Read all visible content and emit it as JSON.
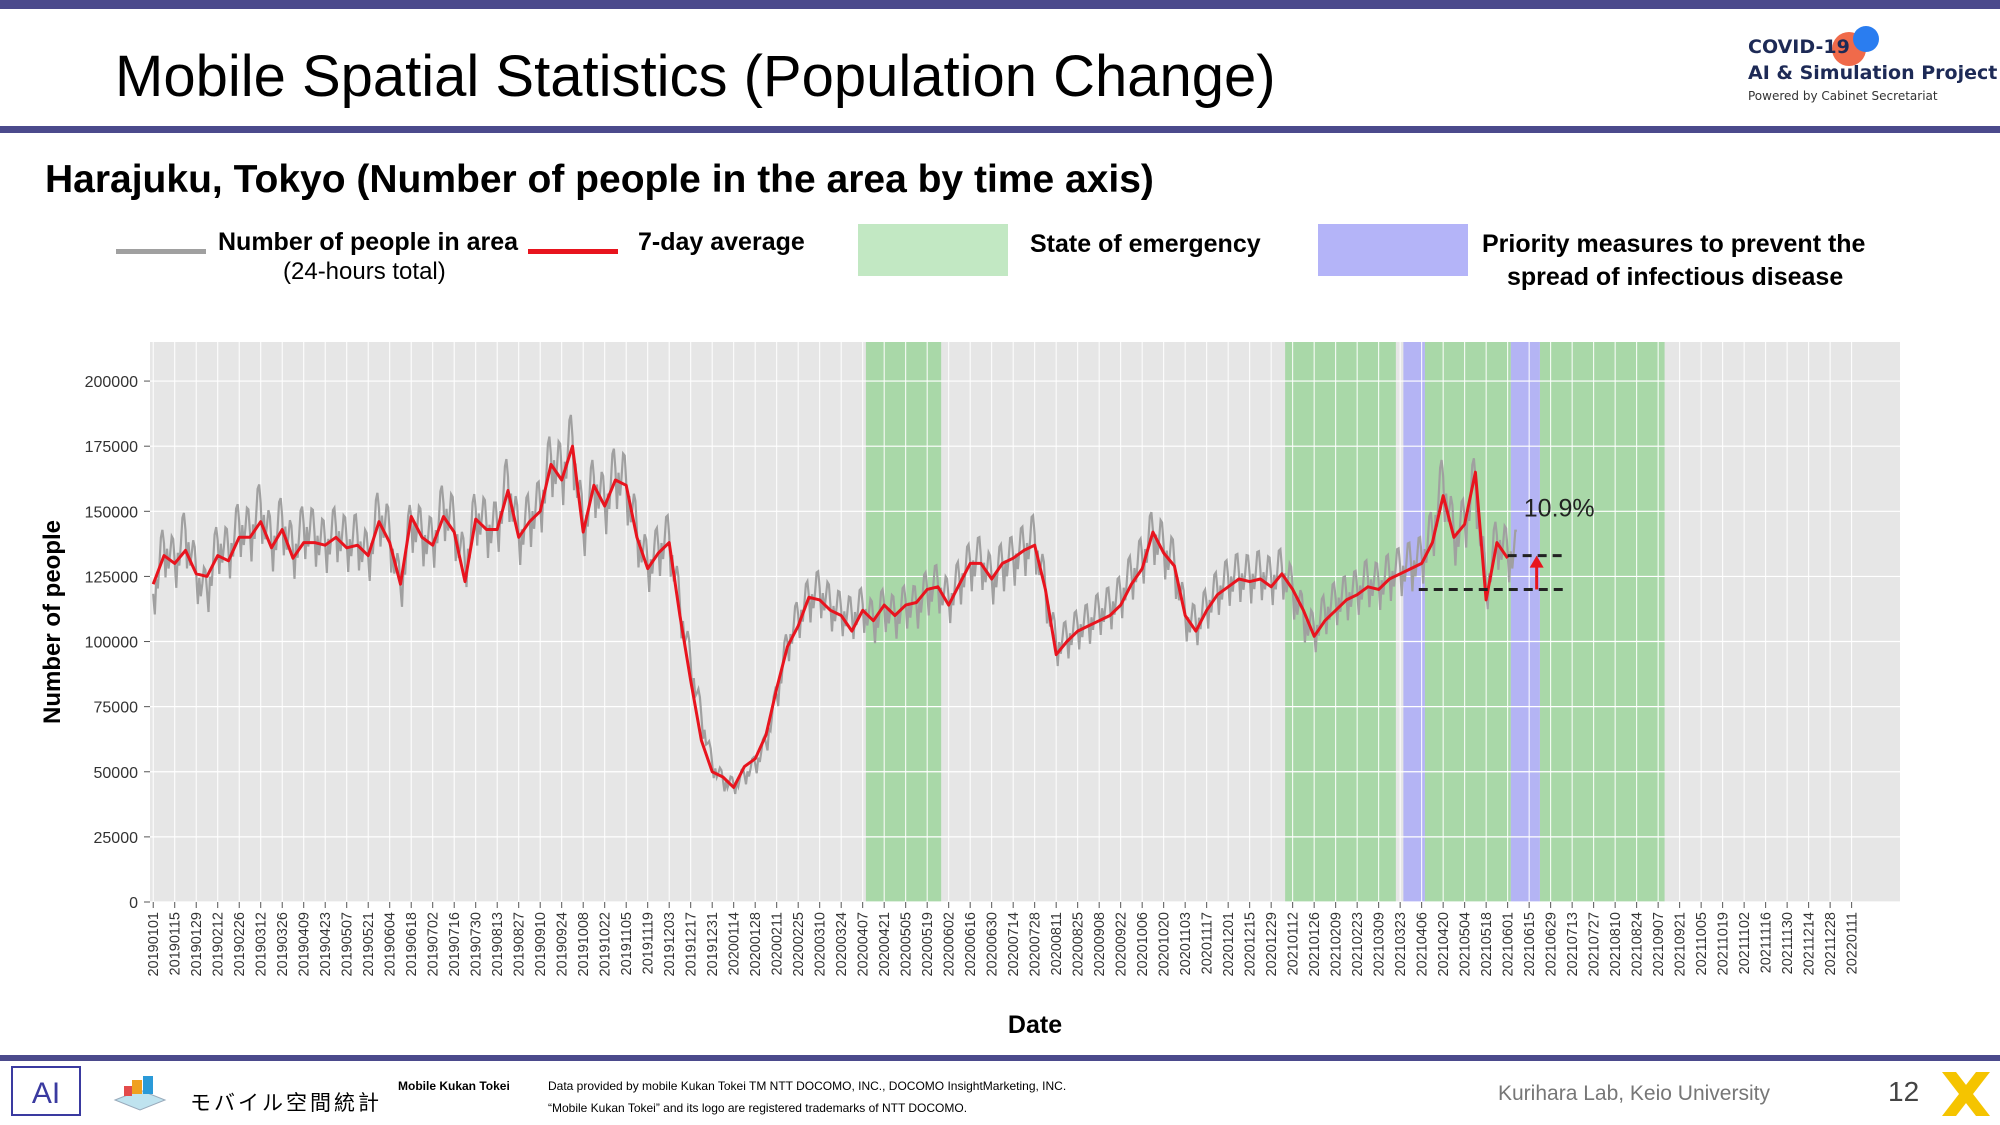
{
  "header": {
    "title": "Mobile Spatial Statistics (Population Change)",
    "brand_line1": "COVID-19",
    "brand_line2": "AI & Simulation Project",
    "brand_line3": "Powered by Cabinet Secretariat"
  },
  "subtitle": "Harajuku, Tokyo (Number of people in the area by time axis)",
  "legend": {
    "area_label": "Number of people in area",
    "area_sub": "(24-hours total)",
    "avg_label": "7-day average",
    "emergency_label": "State of emergency",
    "priority_line1": "Priority measures to prevent the",
    "priority_line2": "spread of infectious disease"
  },
  "colors": {
    "raw": "#a0a0a0",
    "avg": "#e8141e",
    "emergency": "#a9d8a8",
    "priority": "#b4b4f4",
    "plot_bg": "#e6e6e6",
    "header_bar": "#4b4a8c"
  },
  "chart_data": {
    "type": "line",
    "xlabel": "Date",
    "ylabel": "Number of people",
    "ylim": [
      0,
      215000
    ],
    "yticks": [
      0,
      25000,
      50000,
      75000,
      100000,
      125000,
      150000,
      175000,
      200000
    ],
    "ytick_labels": [
      "0",
      "25000",
      "50000",
      "75000",
      "100000",
      "125000",
      "150000",
      "175000",
      "200000"
    ],
    "x_tick_labels": [
      "20190101",
      "20190115",
      "20190129",
      "20190212",
      "20190226",
      "20190312",
      "20190326",
      "20190409",
      "20190423",
      "20190507",
      "20190521",
      "20190604",
      "20190618",
      "20190702",
      "20190716",
      "20190730",
      "20190813",
      "20190827",
      "20190910",
      "20190924",
      "20191008",
      "20191022",
      "20191105",
      "20191119",
      "20191203",
      "20191217",
      "20191231",
      "20200114",
      "20200128",
      "20200211",
      "20200225",
      "20200310",
      "20200324",
      "20200407",
      "20200421",
      "20200505",
      "20200519",
      "20200602",
      "20200616",
      "20200630",
      "20200714",
      "20200728",
      "20200811",
      "20200825",
      "20200908",
      "20200922",
      "20201006",
      "20201020",
      "20201103",
      "20201117",
      "20201201",
      "20201215",
      "20201229",
      "20210112",
      "20210126",
      "20210209",
      "20210223",
      "20210309",
      "20210323",
      "20210406",
      "20210420",
      "20210504",
      "20210518",
      "20210601",
      "20210615",
      "20210629",
      "20210713",
      "20210727",
      "20210810",
      "20210824",
      "20210907",
      "20210921",
      "20211005",
      "20211019",
      "20211102",
      "20211116",
      "20211130",
      "20211214",
      "20211228",
      "20220111"
    ],
    "x_range_weeks": [
      -0.3,
      162.5
    ],
    "emergency_periods": [
      [
        66.3,
        73.3
      ],
      [
        105.3,
        115.6
      ],
      [
        118.3,
        126.3
      ],
      [
        129.0,
        140.6
      ]
    ],
    "priority_periods": [
      [
        116.3,
        118.3
      ],
      [
        126.3,
        129.0
      ]
    ],
    "series": [
      {
        "name": "Number of people in area",
        "week_points": [
          [
            0,
            116000
          ],
          [
            1,
            135000
          ],
          [
            2,
            128000
          ],
          [
            3,
            140000
          ],
          [
            4,
            124000
          ],
          [
            5,
            117000
          ],
          [
            6,
            136000
          ],
          [
            7,
            132000
          ],
          [
            8,
            143000
          ],
          [
            9,
            139000
          ],
          [
            10,
            150000
          ],
          [
            11,
            135000
          ],
          [
            12,
            145000
          ],
          [
            13,
            132000
          ],
          [
            14,
            142000
          ],
          [
            15,
            139000
          ],
          [
            16,
            135000
          ],
          [
            17,
            141000
          ],
          [
            18,
            136000
          ],
          [
            19,
            138000
          ],
          [
            20,
            130000
          ],
          [
            21,
            148000
          ],
          [
            22,
            139000
          ],
          [
            23,
            118000
          ],
          [
            24,
            145000
          ],
          [
            25,
            139000
          ],
          [
            26,
            136000
          ],
          [
            27,
            150000
          ],
          [
            28,
            143000
          ],
          [
            29,
            127000
          ],
          [
            30,
            148000
          ],
          [
            31,
            142000
          ],
          [
            32,
            142000
          ],
          [
            33,
            160000
          ],
          [
            34,
            138000
          ],
          [
            35,
            146000
          ],
          [
            36,
            150000
          ],
          [
            37,
            168000
          ],
          [
            38,
            162000
          ],
          [
            39,
            175000
          ],
          [
            40,
            140000
          ],
          [
            41,
            160000
          ],
          [
            42,
            150000
          ],
          [
            43,
            163000
          ],
          [
            44,
            158000
          ],
          [
            45,
            140000
          ],
          [
            46,
            127000
          ],
          [
            47,
            134000
          ],
          [
            48,
            138000
          ],
          [
            49,
            112000
          ],
          [
            50,
            90000
          ],
          [
            51,
            70000
          ],
          [
            52,
            52000
          ],
          [
            53,
            46000
          ],
          [
            54,
            44000
          ],
          [
            55,
            48000
          ],
          [
            56,
            52000
          ],
          [
            57,
            60000
          ],
          [
            58,
            78000
          ],
          [
            59,
            98000
          ],
          [
            60,
            108000
          ],
          [
            61,
            115000
          ],
          [
            62,
            118000
          ],
          [
            63,
            112000
          ],
          [
            64,
            110000
          ],
          [
            65,
            108000
          ],
          [
            66,
            112000
          ],
          [
            67,
            106000
          ],
          [
            68,
            112000
          ],
          [
            69,
            108000
          ],
          [
            70,
            113000
          ],
          [
            71,
            112000
          ],
          [
            72,
            118000
          ],
          [
            73,
            120000
          ],
          [
            74,
            114000
          ],
          [
            75,
            122000
          ],
          [
            76,
            128000
          ],
          [
            77,
            130000
          ],
          [
            78,
            122000
          ],
          [
            79,
            128000
          ],
          [
            80,
            130000
          ],
          [
            81,
            134000
          ],
          [
            82,
            138000
          ],
          [
            83,
            118000
          ],
          [
            84,
            97000
          ],
          [
            85,
            100000
          ],
          [
            86,
            104000
          ],
          [
            87,
            106000
          ],
          [
            88,
            110000
          ],
          [
            89,
            112000
          ],
          [
            90,
            116000
          ],
          [
            91,
            124000
          ],
          [
            92,
            130000
          ],
          [
            93,
            140000
          ],
          [
            94,
            134000
          ],
          [
            95,
            128000
          ],
          [
            96,
            108000
          ],
          [
            97,
            105000
          ],
          [
            98,
            112000
          ],
          [
            99,
            118000
          ],
          [
            100,
            122000
          ],
          [
            101,
            124000
          ],
          [
            102,
            123000
          ],
          [
            103,
            125000
          ],
          [
            104,
            122000
          ],
          [
            105,
            126000
          ],
          [
            106,
            118000
          ],
          [
            107,
            108000
          ],
          [
            108,
            102000
          ],
          [
            109,
            110000
          ],
          [
            110,
            114000
          ],
          [
            111,
            116000
          ],
          [
            112,
            118000
          ],
          [
            113,
            122000
          ],
          [
            114,
            120000
          ],
          [
            115,
            124000
          ],
          [
            116,
            126000
          ],
          [
            117,
            128000
          ],
          [
            118,
            130000
          ],
          [
            119,
            140000
          ],
          [
            120,
            160000
          ],
          [
            121,
            138000
          ],
          [
            122,
            144000
          ],
          [
            123,
            160000
          ],
          [
            124,
            118000
          ],
          [
            125,
            138000
          ],
          [
            126,
            132000
          ]
        ]
      },
      {
        "name": "7-day average",
        "week_points": [
          [
            0,
            122000
          ],
          [
            1,
            133000
          ],
          [
            2,
            130000
          ],
          [
            3,
            135000
          ],
          [
            4,
            126000
          ],
          [
            5,
            125000
          ],
          [
            6,
            133000
          ],
          [
            7,
            131000
          ],
          [
            8,
            140000
          ],
          [
            9,
            140000
          ],
          [
            10,
            146000
          ],
          [
            11,
            136000
          ],
          [
            12,
            143000
          ],
          [
            13,
            132000
          ],
          [
            14,
            138000
          ],
          [
            15,
            138000
          ],
          [
            16,
            137000
          ],
          [
            17,
            140000
          ],
          [
            18,
            136000
          ],
          [
            19,
            137000
          ],
          [
            20,
            133000
          ],
          [
            21,
            146000
          ],
          [
            22,
            138000
          ],
          [
            23,
            122000
          ],
          [
            24,
            148000
          ],
          [
            25,
            140000
          ],
          [
            26,
            137000
          ],
          [
            27,
            148000
          ],
          [
            28,
            142000
          ],
          [
            29,
            123000
          ],
          [
            30,
            147000
          ],
          [
            31,
            143000
          ],
          [
            32,
            143000
          ],
          [
            33,
            158000
          ],
          [
            34,
            140000
          ],
          [
            35,
            146000
          ],
          [
            36,
            150000
          ],
          [
            37,
            168000
          ],
          [
            38,
            162000
          ],
          [
            39,
            175000
          ],
          [
            40,
            142000
          ],
          [
            41,
            160000
          ],
          [
            42,
            152000
          ],
          [
            43,
            162000
          ],
          [
            44,
            160000
          ],
          [
            45,
            140000
          ],
          [
            46,
            128000
          ],
          [
            47,
            134000
          ],
          [
            48,
            138000
          ],
          [
            49,
            110000
          ],
          [
            50,
            85000
          ],
          [
            51,
            62000
          ],
          [
            52,
            50000
          ],
          [
            53,
            48000
          ],
          [
            54,
            44000
          ],
          [
            55,
            52000
          ],
          [
            56,
            55000
          ],
          [
            57,
            64000
          ],
          [
            58,
            82000
          ],
          [
            59,
            98000
          ],
          [
            60,
            106000
          ],
          [
            61,
            117000
          ],
          [
            62,
            116000
          ],
          [
            63,
            112000
          ],
          [
            64,
            110000
          ],
          [
            65,
            104000
          ],
          [
            66,
            112000
          ],
          [
            67,
            108000
          ],
          [
            68,
            114000
          ],
          [
            69,
            110000
          ],
          [
            70,
            114000
          ],
          [
            71,
            115000
          ],
          [
            72,
            120000
          ],
          [
            73,
            121000
          ],
          [
            74,
            114000
          ],
          [
            75,
            122000
          ],
          [
            76,
            130000
          ],
          [
            77,
            130000
          ],
          [
            78,
            124000
          ],
          [
            79,
            130000
          ],
          [
            80,
            132000
          ],
          [
            81,
            135000
          ],
          [
            82,
            137000
          ],
          [
            83,
            120000
          ],
          [
            84,
            95000
          ],
          [
            85,
            100000
          ],
          [
            86,
            104000
          ],
          [
            87,
            106000
          ],
          [
            88,
            108000
          ],
          [
            89,
            110000
          ],
          [
            90,
            114000
          ],
          [
            91,
            122000
          ],
          [
            92,
            128000
          ],
          [
            93,
            142000
          ],
          [
            94,
            134000
          ],
          [
            95,
            129000
          ],
          [
            96,
            110000
          ],
          [
            97,
            104000
          ],
          [
            98,
            112000
          ],
          [
            99,
            118000
          ],
          [
            100,
            121000
          ],
          [
            101,
            124000
          ],
          [
            102,
            123000
          ],
          [
            103,
            124000
          ],
          [
            104,
            121000
          ],
          [
            105,
            126000
          ],
          [
            106,
            120000
          ],
          [
            107,
            112000
          ],
          [
            108,
            102000
          ],
          [
            109,
            108000
          ],
          [
            110,
            112000
          ],
          [
            111,
            116000
          ],
          [
            112,
            118000
          ],
          [
            113,
            121000
          ],
          [
            114,
            120000
          ],
          [
            115,
            124000
          ],
          [
            116,
            126000
          ],
          [
            117,
            128000
          ],
          [
            118,
            130000
          ],
          [
            119,
            138000
          ],
          [
            120,
            156000
          ],
          [
            121,
            140000
          ],
          [
            122,
            145000
          ],
          [
            123,
            165000
          ],
          [
            124,
            116000
          ],
          [
            125,
            138000
          ],
          [
            126,
            132000
          ]
        ]
      }
    ],
    "baseline_value": 120000,
    "recent_value": 133000,
    "change_annotation": "10.9%"
  },
  "footer": {
    "logo_text": "モバイル空間統計",
    "logo_label": "Mobile Kukan Tokei",
    "credit_line1": "Data provided by mobile Kukan Tokei TM NTT DOCOMO, INC., DOCOMO InsightMarketing, INC.",
    "credit_line2": "“Mobile Kukan Tokei” and its logo are registered trademarks of NTT DOCOMO.",
    "lab": "Kurihara Lab, Keio University",
    "page_number": "12"
  }
}
